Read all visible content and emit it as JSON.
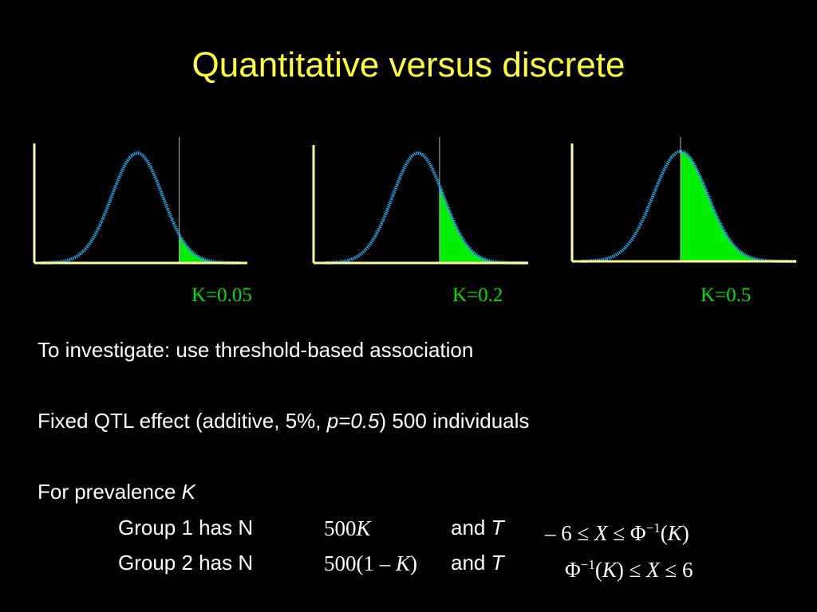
{
  "slide": {
    "title": "Quantitative versus discrete",
    "colors": {
      "title": "#ffff33",
      "axis": "#ffff99",
      "curve": "#22aaee",
      "fill": "#00ee00",
      "label": "#00e000",
      "background": "#000000"
    }
  },
  "chart_data": [
    {
      "type": "area",
      "distribution": "normal",
      "shaded_tail": "upper",
      "prevalence": 0.05,
      "label": "K=0.05"
    },
    {
      "type": "area",
      "distribution": "normal",
      "shaded_tail": "upper",
      "prevalence": 0.2,
      "label": "K=0.2"
    },
    {
      "type": "area",
      "distribution": "normal",
      "shaded_tail": "upper",
      "prevalence": 0.5,
      "label": "K=0.5"
    }
  ],
  "body": {
    "line1": "To investigate: use threshold-based association",
    "line2_pre": "Fixed QTL effect (additive, 5%, ",
    "line2_p": "p=0.5",
    "line2_post": ") 500 individuals",
    "line3_pre": "For prevalence ",
    "line3_k": "K",
    "group1_label": "Group 1 has N",
    "group2_label": "Group 2 has N",
    "and_text": "and ",
    "t_text": "T"
  },
  "math": {
    "group1_n_num": "500",
    "group1_n_var": "K",
    "group2_n_pre": "500(1 – ",
    "group2_n_var": "K",
    "group2_n_post": ")",
    "group1_t_pre": "– 6 ≤ ",
    "group1_t_x": "X",
    "group1_t_mid": " ≤ Φ",
    "group1_t_sup": "−1",
    "group1_t_open": "(",
    "group1_t_k": "K",
    "group1_t_close": ")",
    "group2_t_phi": "Φ",
    "group2_t_sup": "−1",
    "group2_t_open": "(",
    "group2_t_k": "K",
    "group2_t_mid": ") ≤ ",
    "group2_t_x": "X",
    "group2_t_post": " ≤ 6"
  }
}
